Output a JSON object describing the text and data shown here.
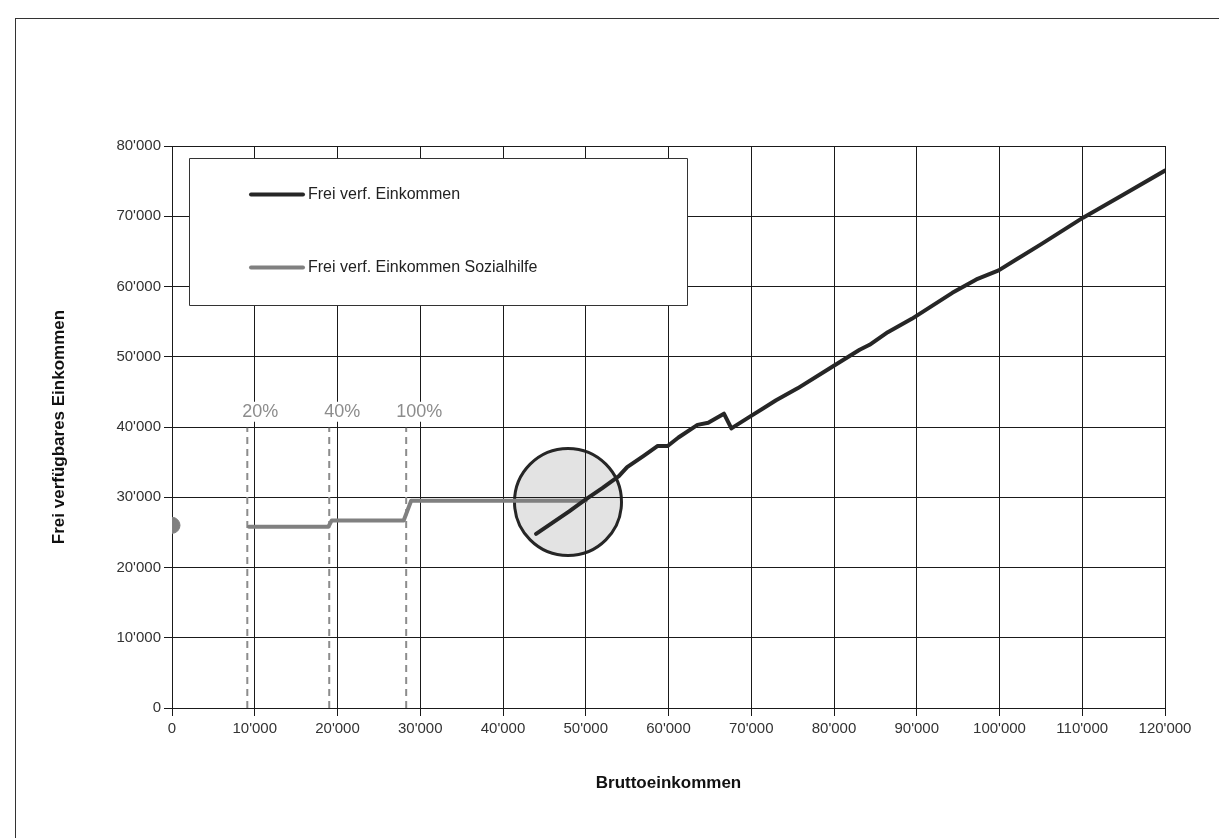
{
  "chart_data": {
    "type": "line",
    "xlabel": "Bruttoeinkommen",
    "ylabel": "Frei verfügbares Einkommen",
    "xlim": [
      0,
      120000
    ],
    "xticks": [
      0,
      {
        "value": 10000,
        "label": "10'000"
      },
      {
        "value": 20000,
        "label": "20'000"
      },
      {
        "value": 30000,
        "label": "30'000"
      },
      {
        "value": 40000,
        "label": "40'000"
      },
      {
        "value": 50000,
        "label": "50'000"
      },
      {
        "value": 60000,
        "label": "60'000"
      },
      {
        "value": 70000,
        "label": "70'000"
      },
      {
        "value": 80000,
        "label": "80'000"
      },
      {
        "value": 90000,
        "label": "90'000"
      },
      {
        "value": 100000,
        "label": "100'000"
      },
      {
        "value": 110000,
        "label": "110'000"
      },
      {
        "value": 120000,
        "label": "120'000"
      }
    ],
    "ylim": [
      0,
      80000
    ],
    "yticks": [
      0,
      {
        "value": 10000,
        "label": "10'000"
      },
      {
        "value": 20000,
        "label": "20'000"
      },
      {
        "value": 30000,
        "label": "30'000"
      },
      {
        "value": 40000,
        "label": "40'000"
      },
      {
        "value": 50000,
        "label": "50'000"
      },
      {
        "value": 60000,
        "label": "60'000"
      },
      {
        "value": 70000,
        "label": "70'000"
      },
      {
        "value": 80000,
        "label": "80'000"
      }
    ],
    "grid": true,
    "legend": "top left",
    "line_style": "solid",
    "series": [
      {
        "name": "Frei verf. Einkommen",
        "color": "#262626",
        "x": [
          44000,
          46000,
          48000,
          50000,
          52000,
          54000,
          55000,
          57000,
          58700,
          59900,
          61200,
          63500,
          64800,
          66700,
          67600,
          69600,
          73000,
          75600,
          79400,
          83100,
          84300,
          86500,
          89400,
          94300,
          97200,
          99900,
          105000,
          110100,
          115000,
          120000
        ],
        "values": [
          24800,
          26400,
          28000,
          29700,
          31300,
          33000,
          34300,
          35900,
          37300,
          37300,
          38500,
          40300,
          40600,
          41900,
          39800,
          41300,
          43800,
          45500,
          48300,
          51000,
          51700,
          53500,
          55400,
          59100,
          61000,
          62300,
          66000,
          69800,
          73100,
          76500
        ]
      },
      {
        "name": "Frei verf. Einkommen Sozialhilfe",
        "color": "#808080",
        "x": [
          9300,
          18900,
          19300,
          28000,
          28900,
          50000
        ],
        "values": [
          25800,
          25800,
          26700,
          26700,
          29500,
          29500
        ]
      },
      {
        "type": "scatter",
        "color": "#808080",
        "marker": "circle",
        "x": [
          0
        ],
        "values": [
          26000
        ]
      }
    ],
    "ref_lines": [
      {
        "axis": "x",
        "value": 9100,
        "color": "#8c8c8c",
        "line_style": "dashed"
      },
      {
        "axis": "x",
        "value": 19000,
        "color": "#8c8c8c",
        "line_style": "dashed"
      },
      {
        "axis": "x",
        "value": 28300,
        "color": "#8c8c8c",
        "line_style": "dashed"
      }
    ],
    "annotations": [
      "20%",
      "40%",
      "100%"
    ]
  }
}
